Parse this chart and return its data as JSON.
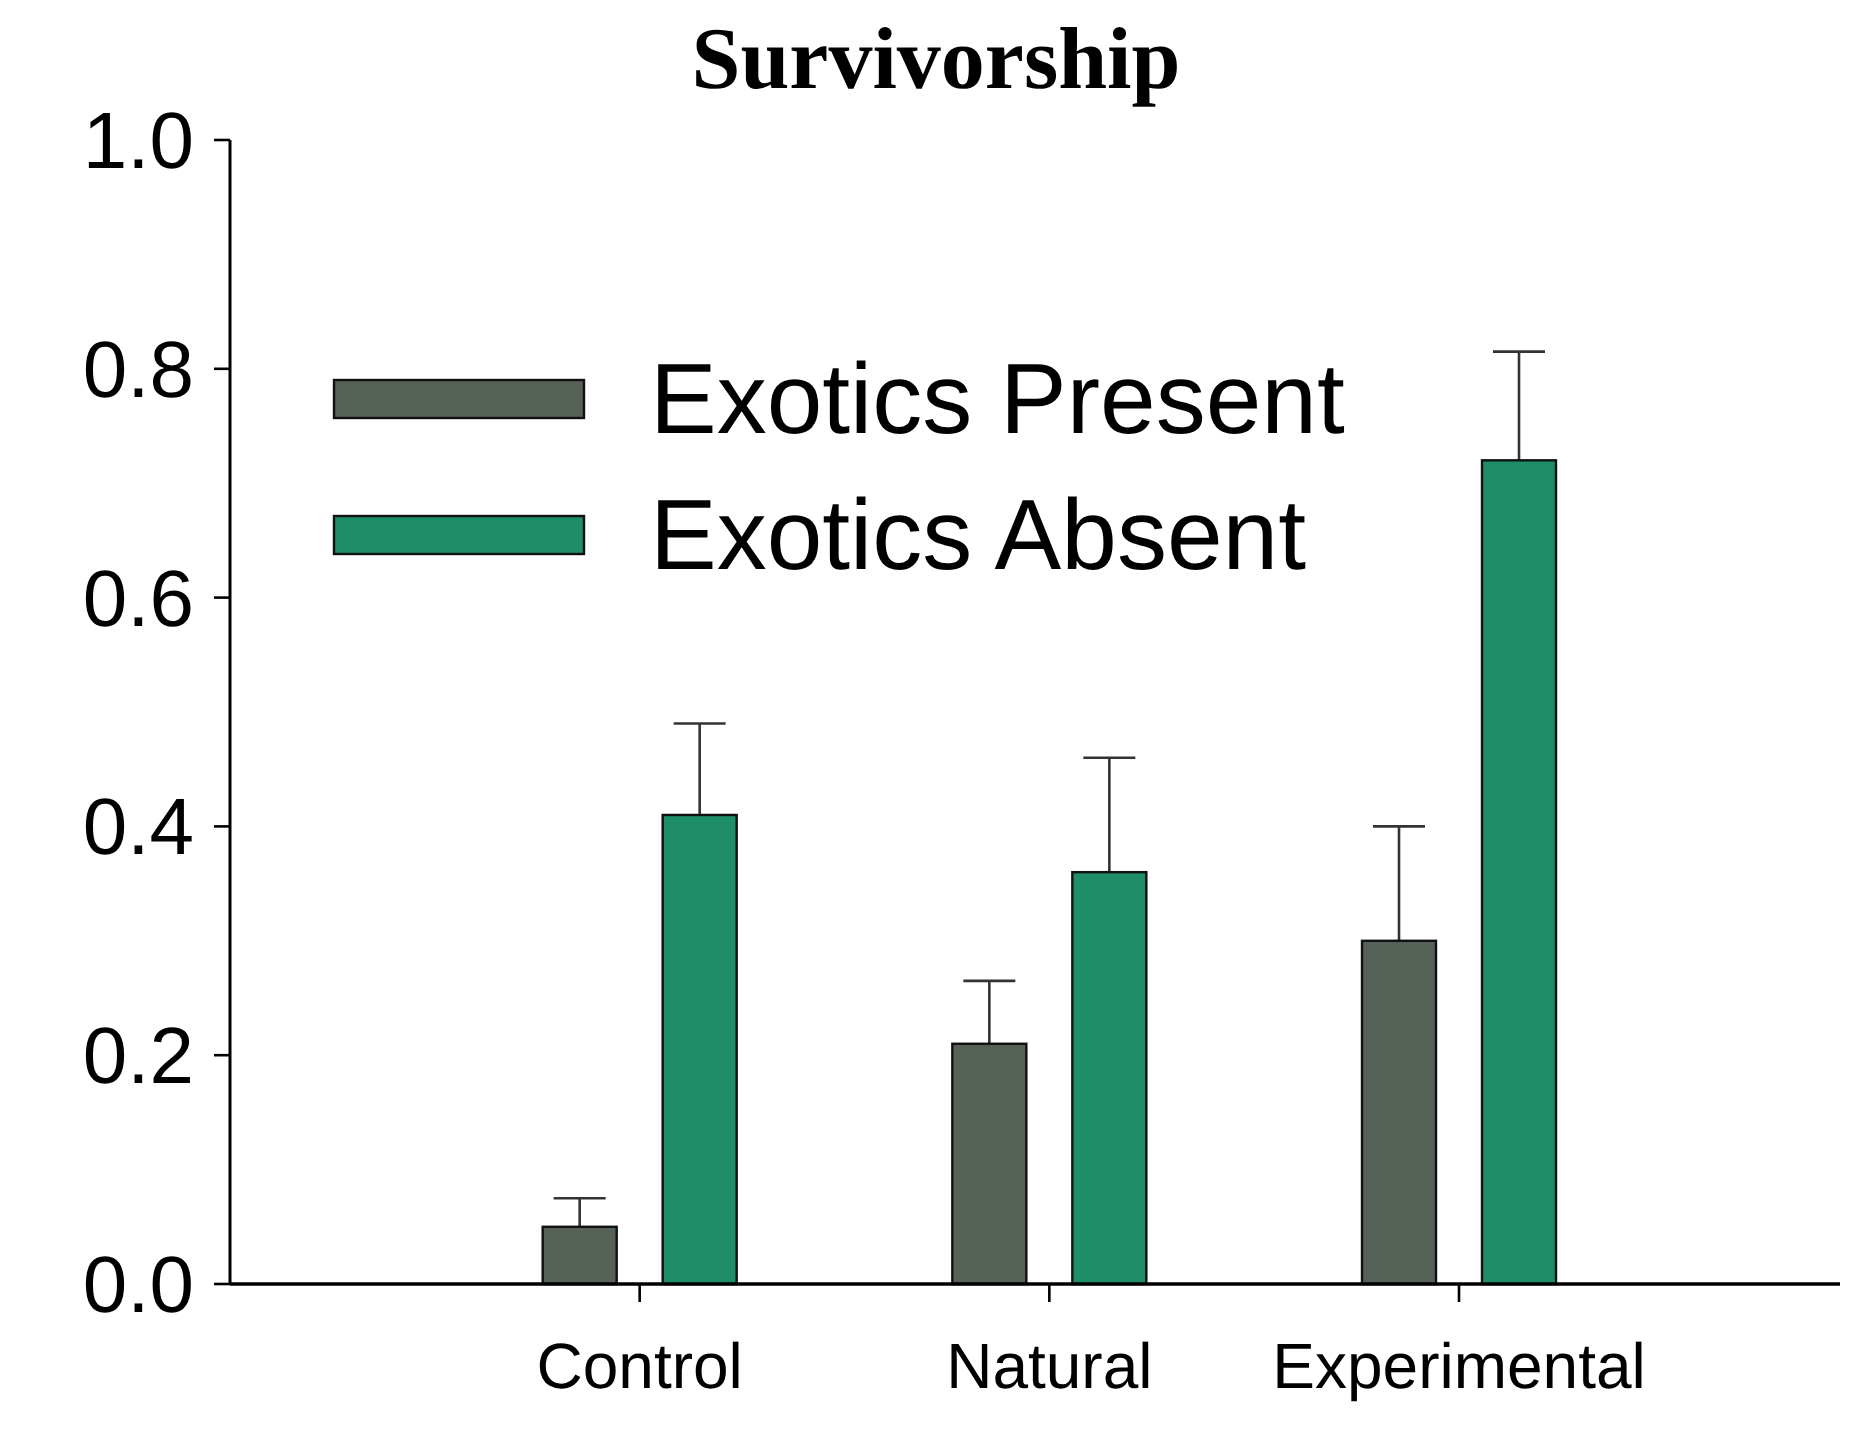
{
  "chart_data": {
    "type": "bar",
    "title": "Survivorship",
    "categories": [
      "Control",
      "Natural",
      "Experimental"
    ],
    "series": [
      {
        "name": "Exotics Present",
        "color": "#566157",
        "values": [
          0.05,
          0.21,
          0.3
        ],
        "errors": [
          0.025,
          0.055,
          0.1
        ]
      },
      {
        "name": "Exotics Absent",
        "color": "#1e8e69",
        "values": [
          0.41,
          0.36,
          0.72
        ],
        "errors": [
          0.08,
          0.1,
          0.095
        ]
      }
    ],
    "ylim": [
      0,
      1
    ],
    "yticks": [
      {
        "value": 0,
        "label": "0.0"
      },
      {
        "value": 0.2,
        "label": "0.2"
      },
      {
        "value": 0.4,
        "label": "0.4"
      },
      {
        "value": 0.6,
        "label": "0.6"
      },
      {
        "value": 0.8,
        "label": "0.8"
      },
      {
        "value": 1,
        "label": "1.0"
      }
    ],
    "legend": "top left",
    "grid": false
  }
}
